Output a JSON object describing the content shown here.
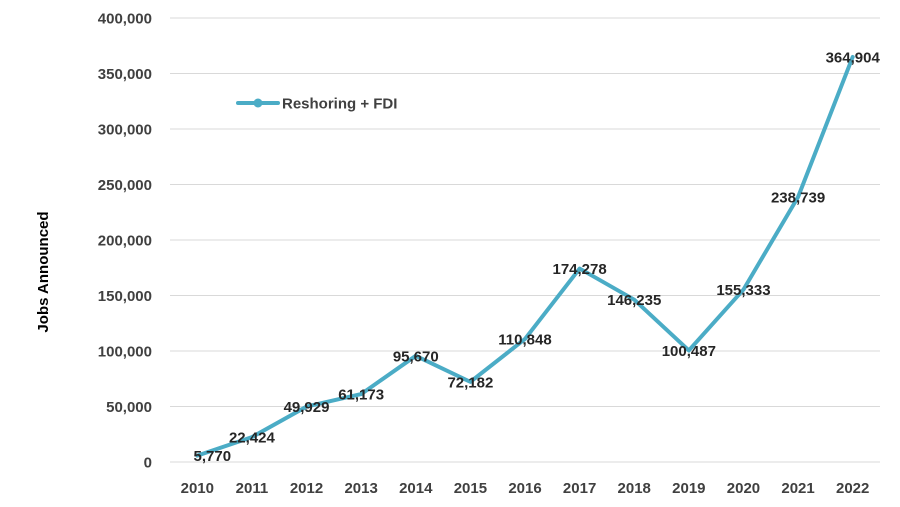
{
  "chart_data": {
    "type": "line",
    "title": "",
    "xlabel": "",
    "ylabel": "Jobs Announced",
    "categories": [
      "2010",
      "2011",
      "2012",
      "2013",
      "2014",
      "2015",
      "2016",
      "2017",
      "2018",
      "2019",
      "2020",
      "2021",
      "2022"
    ],
    "series": [
      {
        "name": "Reshoring + FDI",
        "values": [
          5770,
          22424,
          49929,
          61173,
          95670,
          72182,
          110848,
          174278,
          146235,
          100487,
          155333,
          238739,
          364904
        ],
        "labels": [
          "5,770",
          "22,424",
          "49,929",
          "61,173",
          "95,670",
          "72,182",
          "110,848",
          "174,278",
          "146,235",
          "100,487",
          "155,333",
          "238,739",
          "364,904"
        ],
        "color": "#4bacc6"
      }
    ],
    "ylim": [
      0,
      400000
    ],
    "yticks": [
      "0",
      "50,000",
      "100,000",
      "150,000",
      "200,000",
      "250,000",
      "300,000",
      "350,000",
      "400,000"
    ],
    "grid": true,
    "legend_position": "top-left"
  }
}
